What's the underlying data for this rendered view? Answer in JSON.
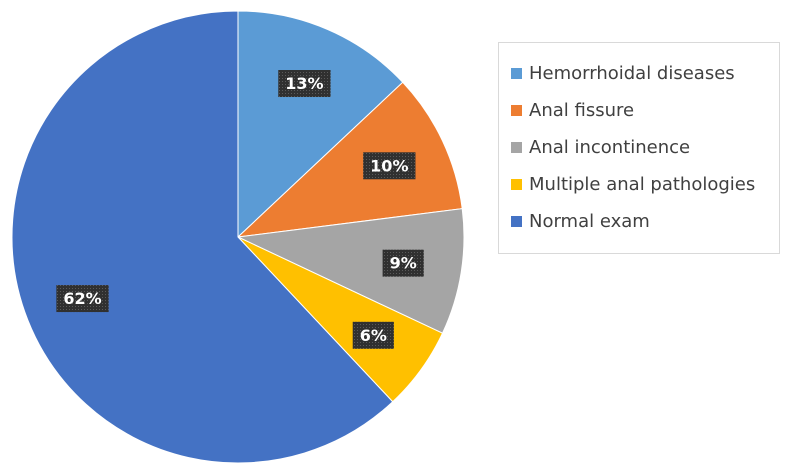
{
  "chart_data": {
    "type": "pie",
    "title": "",
    "legend_position": "right",
    "start_angle_deg": 0,
    "direction": "clockwise",
    "slices": [
      {
        "label": "Hemorrhoidal diseases",
        "value": 13,
        "display": "13%",
        "color": "#5b9bd5"
      },
      {
        "label": "Anal fissure",
        "value": 10,
        "display": "10%",
        "color": "#ed7d31"
      },
      {
        "label": "Anal incontinence",
        "value": 9,
        "display": "9%",
        "color": "#a5a5a5"
      },
      {
        "label": "Multiple anal pathologies",
        "value": 6,
        "display": "6%",
        "color": "#ffc000"
      },
      {
        "label": "Normal exam",
        "value": 62,
        "display": "62%",
        "color": "#4472c4"
      }
    ]
  }
}
